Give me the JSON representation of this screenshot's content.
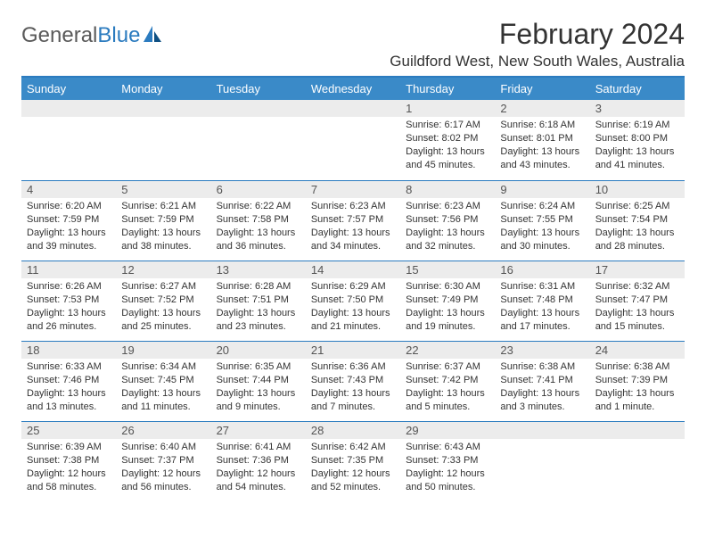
{
  "logo": {
    "brand_part1": "General",
    "brand_part2": "Blue"
  },
  "title": "February 2024",
  "location": "Guildford West, New South Wales, Australia",
  "colors": {
    "header_bg": "#3a8ac8",
    "divider": "#2b7bbf",
    "daynum_bg": "#ececec",
    "text": "#333333",
    "logo_gray": "#5a5a5a",
    "logo_blue": "#2b7bbf"
  },
  "day_headers": [
    "Sunday",
    "Monday",
    "Tuesday",
    "Wednesday",
    "Thursday",
    "Friday",
    "Saturday"
  ],
  "weeks": [
    [
      {
        "n": "",
        "s": ""
      },
      {
        "n": "",
        "s": ""
      },
      {
        "n": "",
        "s": ""
      },
      {
        "n": "",
        "s": ""
      },
      {
        "n": "1",
        "s": "Sunrise: 6:17 AM\nSunset: 8:02 PM\nDaylight: 13 hours and 45 minutes."
      },
      {
        "n": "2",
        "s": "Sunrise: 6:18 AM\nSunset: 8:01 PM\nDaylight: 13 hours and 43 minutes."
      },
      {
        "n": "3",
        "s": "Sunrise: 6:19 AM\nSunset: 8:00 PM\nDaylight: 13 hours and 41 minutes."
      }
    ],
    [
      {
        "n": "4",
        "s": "Sunrise: 6:20 AM\nSunset: 7:59 PM\nDaylight: 13 hours and 39 minutes."
      },
      {
        "n": "5",
        "s": "Sunrise: 6:21 AM\nSunset: 7:59 PM\nDaylight: 13 hours and 38 minutes."
      },
      {
        "n": "6",
        "s": "Sunrise: 6:22 AM\nSunset: 7:58 PM\nDaylight: 13 hours and 36 minutes."
      },
      {
        "n": "7",
        "s": "Sunrise: 6:23 AM\nSunset: 7:57 PM\nDaylight: 13 hours and 34 minutes."
      },
      {
        "n": "8",
        "s": "Sunrise: 6:23 AM\nSunset: 7:56 PM\nDaylight: 13 hours and 32 minutes."
      },
      {
        "n": "9",
        "s": "Sunrise: 6:24 AM\nSunset: 7:55 PM\nDaylight: 13 hours and 30 minutes."
      },
      {
        "n": "10",
        "s": "Sunrise: 6:25 AM\nSunset: 7:54 PM\nDaylight: 13 hours and 28 minutes."
      }
    ],
    [
      {
        "n": "11",
        "s": "Sunrise: 6:26 AM\nSunset: 7:53 PM\nDaylight: 13 hours and 26 minutes."
      },
      {
        "n": "12",
        "s": "Sunrise: 6:27 AM\nSunset: 7:52 PM\nDaylight: 13 hours and 25 minutes."
      },
      {
        "n": "13",
        "s": "Sunrise: 6:28 AM\nSunset: 7:51 PM\nDaylight: 13 hours and 23 minutes."
      },
      {
        "n": "14",
        "s": "Sunrise: 6:29 AM\nSunset: 7:50 PM\nDaylight: 13 hours and 21 minutes."
      },
      {
        "n": "15",
        "s": "Sunrise: 6:30 AM\nSunset: 7:49 PM\nDaylight: 13 hours and 19 minutes."
      },
      {
        "n": "16",
        "s": "Sunrise: 6:31 AM\nSunset: 7:48 PM\nDaylight: 13 hours and 17 minutes."
      },
      {
        "n": "17",
        "s": "Sunrise: 6:32 AM\nSunset: 7:47 PM\nDaylight: 13 hours and 15 minutes."
      }
    ],
    [
      {
        "n": "18",
        "s": "Sunrise: 6:33 AM\nSunset: 7:46 PM\nDaylight: 13 hours and 13 minutes."
      },
      {
        "n": "19",
        "s": "Sunrise: 6:34 AM\nSunset: 7:45 PM\nDaylight: 13 hours and 11 minutes."
      },
      {
        "n": "20",
        "s": "Sunrise: 6:35 AM\nSunset: 7:44 PM\nDaylight: 13 hours and 9 minutes."
      },
      {
        "n": "21",
        "s": "Sunrise: 6:36 AM\nSunset: 7:43 PM\nDaylight: 13 hours and 7 minutes."
      },
      {
        "n": "22",
        "s": "Sunrise: 6:37 AM\nSunset: 7:42 PM\nDaylight: 13 hours and 5 minutes."
      },
      {
        "n": "23",
        "s": "Sunrise: 6:38 AM\nSunset: 7:41 PM\nDaylight: 13 hours and 3 minutes."
      },
      {
        "n": "24",
        "s": "Sunrise: 6:38 AM\nSunset: 7:39 PM\nDaylight: 13 hours and 1 minute."
      }
    ],
    [
      {
        "n": "25",
        "s": "Sunrise: 6:39 AM\nSunset: 7:38 PM\nDaylight: 12 hours and 58 minutes."
      },
      {
        "n": "26",
        "s": "Sunrise: 6:40 AM\nSunset: 7:37 PM\nDaylight: 12 hours and 56 minutes."
      },
      {
        "n": "27",
        "s": "Sunrise: 6:41 AM\nSunset: 7:36 PM\nDaylight: 12 hours and 54 minutes."
      },
      {
        "n": "28",
        "s": "Sunrise: 6:42 AM\nSunset: 7:35 PM\nDaylight: 12 hours and 52 minutes."
      },
      {
        "n": "29",
        "s": "Sunrise: 6:43 AM\nSunset: 7:33 PM\nDaylight: 12 hours and 50 minutes."
      },
      {
        "n": "",
        "s": ""
      },
      {
        "n": "",
        "s": ""
      }
    ]
  ]
}
